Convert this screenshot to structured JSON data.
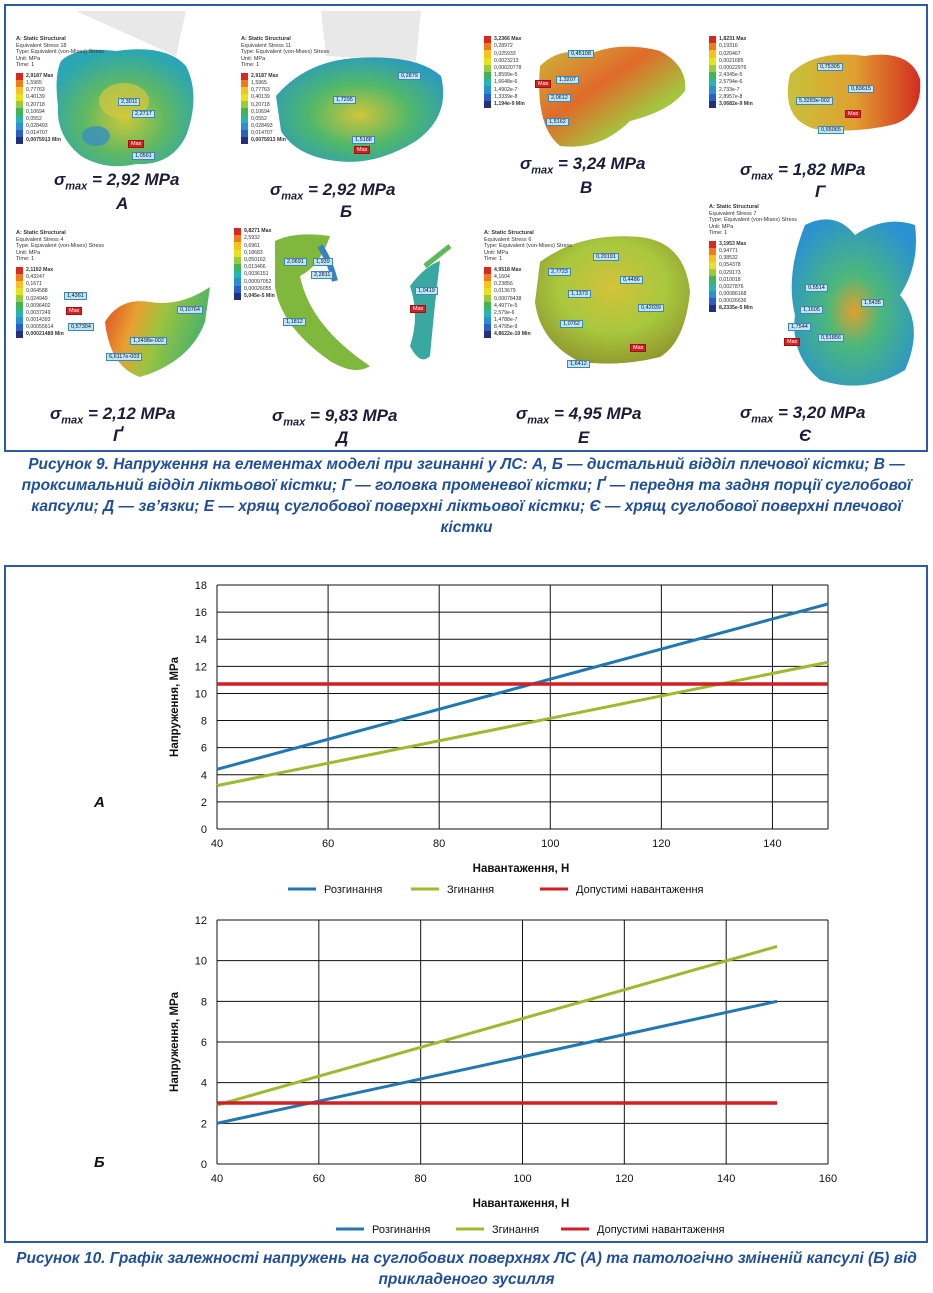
{
  "figure9": {
    "panels": [
      {
        "id": "A",
        "header": [
          "A: Static Structural",
          "Equivalent Stress 18",
          "Type: Equivalent (von-Mises) Stress",
          "Unit: MPa",
          "Time: 1"
        ],
        "scale": [
          "2,9187 Max",
          "1,5965",
          "0,77763",
          "0,40139",
          "0,20718",
          "0,10694",
          "0,0552",
          "0,028493",
          "0,014707",
          "0,0075913 Min"
        ],
        "tags": [
          "2,3011",
          "2,2717",
          "Max",
          "1,0561"
        ],
        "sigma": "2,92 MPa",
        "letter": "А"
      },
      {
        "id": "B",
        "header": [
          "A: Static Structural",
          "Equivalent Stress 11",
          "Type: Equivalent (von-Mises) Stress",
          "Unit: MPa",
          "Time: 1"
        ],
        "scale": [
          "2,9187 Max",
          "1,5965",
          "0,77763",
          "0,40139",
          "0,20718",
          "0,10694",
          "0,0552",
          "0,028493",
          "0,014707",
          "0,0075913 Min"
        ],
        "tags": [
          "0,2879",
          "1,7295",
          "1,5188",
          "Max"
        ],
        "sigma": "2,92 MPa",
        "letter": "Б"
      },
      {
        "id": "V",
        "header": [],
        "scale": [
          "3,2366 Max",
          "0,28972",
          "0,025933",
          "0,0023213",
          "0,00020778",
          "1,8599e-5",
          "1,6648e-6",
          "1,4902e-7",
          "1,3339e-8",
          "1,194e-9 Min"
        ],
        "tags": [
          "0,45108",
          "1,3207",
          "Max",
          "2,0612",
          "1,5162"
        ],
        "sigma": "3,24 MPa",
        "letter": "В"
      },
      {
        "id": "G",
        "header": [],
        "scale": [
          "1,8231 Max",
          "0,19316",
          "0,020467",
          "0,0021685",
          "0,00022976",
          "2,4345e-5",
          "2,5794e-6",
          "2,733e-7",
          "2,8957e-8",
          "3,0682e-9 Min"
        ],
        "tags": [
          "0,75305",
          "5,3283e-002",
          "0,83615",
          "0,65065",
          "Max"
        ],
        "sigma": "1,82 MPa",
        "letter": "Г"
      },
      {
        "id": "GG",
        "header": [
          "A: Static Structural",
          "Equivalent Stress 4",
          "Type: Equivalent (von-Mises) Stress",
          "Unit: MPa",
          "Time: 1"
        ],
        "scale": [
          "2,1192 Max",
          "0,43247",
          "0,1671",
          "0,064588",
          "0,024949",
          "0,0096402",
          "0,0037249",
          "0,0014393",
          "0,00055614",
          "0,00021489 Min"
        ],
        "tags": [
          "1,4361",
          "Max",
          "0,57304",
          "0,10764",
          "1,2498e-002",
          "6,6117e-003"
        ],
        "sigma": "2,12 MPa",
        "letter": "Ґ"
      },
      {
        "id": "D",
        "header": [],
        "scale": [
          "9,8271 Max",
          "2,5932",
          "0,6961",
          "0,18683",
          "0,050162",
          "0,013466",
          "0,0036151",
          "0,00097052",
          "0,00026055",
          "5,045e-5 Min"
        ],
        "tags": [
          "2,0691",
          "1,939",
          "2,2811",
          "1,0419",
          "Max",
          "1,1812"
        ],
        "sigma": "9,83 MPa",
        "letter": "Д"
      },
      {
        "id": "E",
        "header": [
          "A: Static Structural",
          "Equivalent Stress 6",
          "Type: Equivalent (von-Mises) Stress",
          "Unit: MPa",
          "Time: 1"
        ],
        "scale": [
          "4,9518 Max",
          "4,1604",
          "0,23856",
          "0,013679",
          "0,00078438",
          "4,4977e-5",
          "2,579e-6",
          "1,4788e-7",
          "8,4795e-9",
          "4,8622e-10 Min"
        ],
        "tags": [
          "0,20191",
          "2,7723",
          "1,1373",
          "0,4486",
          "0,42039",
          "1,0762",
          "1,6412",
          "Max"
        ],
        "sigma": "4,95 MPa",
        "letter": "Е"
      },
      {
        "id": "YE",
        "header": [
          "A: Static Structural",
          "Equivalent Stress 7",
          "Type: Equivalent (von-Mises) Stress",
          "Unit: MPa",
          "Time: 1"
        ],
        "scale": [
          "3,1953 Max",
          "0,94771",
          "0,38532",
          "0,054378",
          "0,029173",
          "0,010018",
          "0,0027876",
          "0,00086168",
          "0,00026636",
          "8,2335e-5 Min"
        ],
        "tags": [
          "0,5514",
          "1,5435",
          "1,1605",
          "1,7544",
          "Max",
          "0,51856"
        ],
        "sigma": "3,20 MPa",
        "letter": "Є"
      }
    ],
    "sigma_symbol": "σ",
    "sigma_sub": "max",
    "caption": "Рисунок 9. Напруження на елементах моделі при згинанні у ЛС: А, Б — дистальний відділ плечової кістки; В — проксимальний відділ ліктьової кістки; Г — головка променевої кістки; Ґ — передня та задня порції суглобової капсули; Д — зв’язки; Е — хрящ суглобової поверхні ліктьової кістки; Є — хрящ суглобової поверхні плечової кістки"
  },
  "chart_data": [
    {
      "type": "line",
      "panel_label": "А",
      "x": [
        40,
        150
      ],
      "xlim": [
        40,
        150
      ],
      "xticks": [
        40,
        60,
        80,
        100,
        120,
        140
      ],
      "ylim": [
        0,
        18
      ],
      "yticks": [
        0,
        2,
        4,
        6,
        8,
        10,
        12,
        14,
        16,
        18
      ],
      "xlabel": "Навантаження, Н",
      "ylabel": "Напруження, МРа",
      "grid": true,
      "legend_position": "bottom",
      "series": [
        {
          "name": "Розгинання",
          "color": "#1f77b4",
          "x": [
            40,
            150
          ],
          "values": [
            4.4,
            16.6
          ]
        },
        {
          "name": "Згинання",
          "color": "#9cba2e",
          "x": [
            40,
            150
          ],
          "values": [
            3.2,
            12.3
          ]
        },
        {
          "name": "Допустимі навантаження",
          "color": "#d21f26",
          "x": [
            40,
            150
          ],
          "values": [
            10.7,
            10.7
          ]
        }
      ]
    },
    {
      "type": "line",
      "panel_label": "Б",
      "x": [
        40,
        150
      ],
      "xlim": [
        40,
        160
      ],
      "xticks": [
        40,
        60,
        80,
        100,
        120,
        140,
        160
      ],
      "ylim": [
        0,
        12
      ],
      "yticks": [
        0,
        2,
        4,
        6,
        8,
        10,
        12
      ],
      "xlabel": "Навантаження, Н",
      "ylabel": "Напруження, МРа",
      "grid": true,
      "legend_position": "bottom",
      "series": [
        {
          "name": "Розгинання",
          "color": "#1f77b4",
          "x": [
            40,
            150
          ],
          "values": [
            2.0,
            8.0
          ]
        },
        {
          "name": "Згинання",
          "color": "#9cba2e",
          "x": [
            40,
            150
          ],
          "values": [
            2.9,
            10.7
          ]
        },
        {
          "name": "Допустимі навантаження",
          "color": "#d21f26",
          "x": [
            40,
            150
          ],
          "values": [
            3.0,
            3.0
          ]
        }
      ]
    }
  ],
  "figure10_caption": "Рисунок 10. Графік залежності напружень на суглобових поверхнях ЛС (А) та патологічно зміненій капсулі (Б) від прикладеного зусилля",
  "colors": {
    "accent": "#1f4f9c",
    "frame": "#2a5aa8"
  },
  "scale_colors": [
    "#d8281f",
    "#f07a1c",
    "#f5c21e",
    "#e6e31e",
    "#9ccb3a",
    "#3fb45a",
    "#2ab4b0",
    "#2a90d0",
    "#2a5ec8",
    "#22307e"
  ]
}
